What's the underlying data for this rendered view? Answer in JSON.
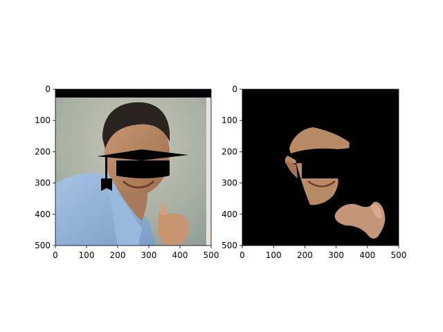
{
  "figure": {
    "background_color": "#ffffff",
    "panels": [
      {
        "name": "left",
        "content": "photo-with-graduation-cap-overlay",
        "x_ticks": [
          "0",
          "100",
          "200",
          "300",
          "400",
          "500"
        ],
        "y_ticks": [
          "0",
          "100",
          "200",
          "300",
          "400",
          "500"
        ]
      },
      {
        "name": "right",
        "content": "masked-skin-segments-on-black",
        "x_ticks": [
          "0",
          "100",
          "200",
          "300",
          "400",
          "500"
        ],
        "y_ticks": [
          "0",
          "100",
          "200",
          "300",
          "400",
          "500"
        ]
      }
    ]
  },
  "colors": {
    "photo_background": "#a9b0a4",
    "shirt": "#8fb0d6",
    "skin": "#b98a66",
    "hair": "#2a2420",
    "overlay": "#000000",
    "mask_background": "#000000"
  }
}
